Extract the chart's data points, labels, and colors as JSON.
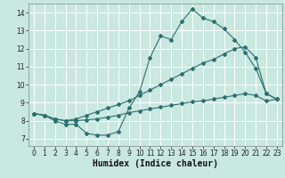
{
  "background_color": "#c8e8e0",
  "grid_color": "#ffffff",
  "line_color": "#2a7070",
  "x_label": "Humidex (Indice chaleur)",
  "xlim": [
    -0.5,
    23.5
  ],
  "ylim": [
    6.6,
    14.5
  ],
  "yticks": [
    7,
    8,
    9,
    10,
    11,
    12,
    13,
    14
  ],
  "xticks": [
    0,
    1,
    2,
    3,
    4,
    5,
    6,
    7,
    8,
    9,
    10,
    11,
    12,
    13,
    14,
    15,
    16,
    17,
    18,
    19,
    20,
    21,
    22,
    23
  ],
  "line1_x": [
    0,
    1,
    2,
    3,
    4,
    5,
    6,
    7,
    8,
    9,
    10,
    11,
    12,
    13,
    14,
    15,
    16,
    17,
    18,
    19,
    20,
    21,
    22,
    23
  ],
  "line1_y": [
    8.4,
    8.3,
    8.0,
    7.8,
    7.8,
    7.3,
    7.2,
    7.2,
    7.4,
    8.7,
    9.6,
    11.5,
    12.7,
    12.5,
    13.5,
    14.2,
    13.7,
    13.5,
    13.1,
    12.5,
    11.8,
    10.9,
    9.5,
    9.2
  ],
  "line2_x": [
    0,
    1,
    2,
    3,
    4,
    5,
    6,
    7,
    8,
    9,
    10,
    11,
    12,
    13,
    14,
    15,
    16,
    17,
    18,
    19,
    20,
    21,
    22,
    23
  ],
  "line2_y": [
    8.4,
    8.3,
    8.1,
    8.0,
    8.1,
    8.3,
    8.5,
    8.7,
    8.9,
    9.1,
    9.4,
    9.7,
    10.0,
    10.3,
    10.6,
    10.9,
    11.2,
    11.4,
    11.7,
    12.0,
    12.1,
    11.5,
    9.5,
    9.2
  ],
  "line3_x": [
    0,
    1,
    2,
    3,
    4,
    5,
    6,
    7,
    8,
    9,
    10,
    11,
    12,
    13,
    14,
    15,
    16,
    17,
    18,
    19,
    20,
    21,
    22,
    23
  ],
  "line3_y": [
    8.4,
    8.3,
    8.1,
    8.0,
    8.0,
    8.05,
    8.1,
    8.2,
    8.3,
    8.45,
    8.55,
    8.65,
    8.75,
    8.85,
    8.95,
    9.05,
    9.1,
    9.2,
    9.3,
    9.4,
    9.5,
    9.4,
    9.1,
    9.2
  ],
  "tick_fontsize": 5.5,
  "label_fontsize": 7.0
}
